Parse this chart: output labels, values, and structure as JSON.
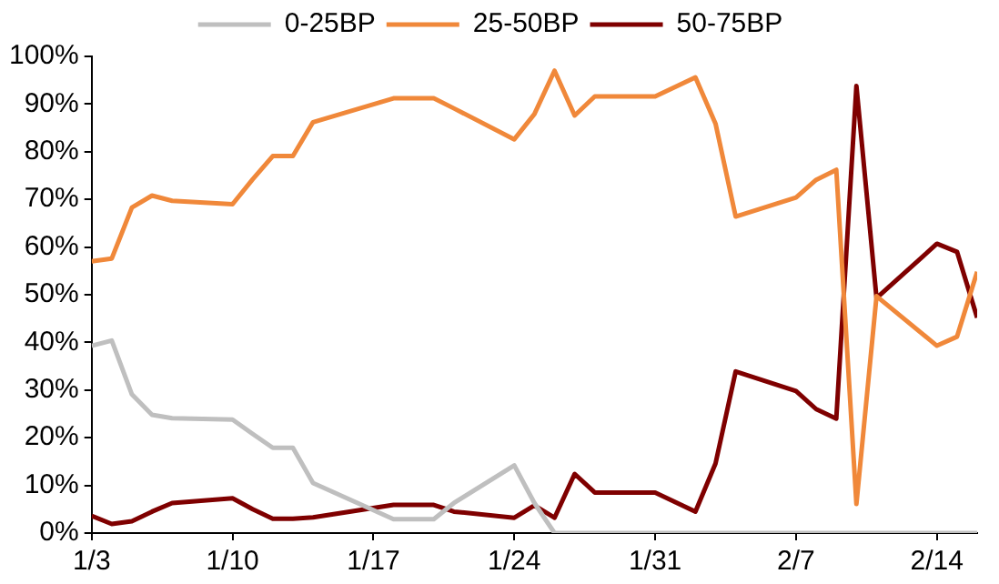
{
  "chart_data": {
    "type": "line",
    "x": [
      "--01-03",
      "--01-04",
      "--01-05",
      "--01-06",
      "--01-07",
      "--01-10",
      "--01-11",
      "--01-12",
      "--01-13",
      "--01-14",
      "--01-18",
      "--01-20",
      "--01-21",
      "--01-24",
      "--01-25",
      "--01-26",
      "--01-27",
      "--01-28",
      "--01-31",
      "--02-02",
      "--02-03",
      "--02-04",
      "--02-07",
      "--02-08",
      "--02-09",
      "--02-10",
      "--02-11",
      "--02-14",
      "--02-15",
      "--02-16"
    ],
    "series": [
      {
        "name": "0-25BP",
        "color": "#bfbfbf",
        "values": [
          39.3,
          40.4,
          29.1,
          24.8,
          24.1,
          23.8,
          20.8,
          17.9,
          17.9,
          10.5,
          2.9,
          2.9,
          6.3,
          14.2,
          6.3,
          0,
          0,
          0,
          0,
          0,
          0,
          0,
          0,
          0,
          0,
          0,
          0,
          0,
          0,
          0
        ]
      },
      {
        "name": "25-50BP",
        "color": "#f0883a",
        "values": [
          57.0,
          57.6,
          68.3,
          70.8,
          69.7,
          69.0,
          74.2,
          79.1,
          79.1,
          86.2,
          91.2,
          91.2,
          89.1,
          82.6,
          87.9,
          97.0,
          87.6,
          91.6,
          91.6,
          95.6,
          85.9,
          66.4,
          70.4,
          74.1,
          76.2,
          6.1,
          49.7,
          39.3,
          41.2,
          54.8
        ]
      },
      {
        "name": "50-75BP",
        "color": "#7f0000",
        "values": [
          3.6,
          1.9,
          2.5,
          4.5,
          6.3,
          7.3,
          5.0,
          3.0,
          3.0,
          3.3,
          5.9,
          5.9,
          4.5,
          3.2,
          5.8,
          3.2,
          12.4,
          8.5,
          8.5,
          4.5,
          14.6,
          33.9,
          29.8,
          26.0,
          24.0,
          93.8,
          49.3,
          60.7,
          59.0,
          45.2
        ]
      }
    ],
    "xlim": [
      "--01-03",
      "--02-16"
    ],
    "xticks": [
      {
        "value": "--01-03",
        "label": "1/3"
      },
      {
        "value": "--01-10",
        "label": "1/10"
      },
      {
        "value": "--01-17",
        "label": "1/17"
      },
      {
        "value": "--01-24",
        "label": "1/24"
      },
      {
        "value": "--01-31",
        "label": "1/31"
      },
      {
        "value": "--02-07",
        "label": "2/7"
      },
      {
        "value": "--02-14",
        "label": "2/14"
      }
    ],
    "ylim": [
      0,
      100
    ],
    "yticks": [
      {
        "value": 0,
        "label": "0%"
      },
      {
        "value": 10,
        "label": "10%"
      },
      {
        "value": 20,
        "label": "20%"
      },
      {
        "value": 30,
        "label": "30%"
      },
      {
        "value": 40,
        "label": "40%"
      },
      {
        "value": 50,
        "label": "50%"
      },
      {
        "value": 60,
        "label": "60%"
      },
      {
        "value": 70,
        "label": "70%"
      },
      {
        "value": 80,
        "label": "80%"
      },
      {
        "value": 90,
        "label": "90%"
      },
      {
        "value": 100,
        "label": "100%"
      }
    ],
    "grid": false,
    "legend": "top",
    "marker": "none",
    "line_style": "solid"
  }
}
